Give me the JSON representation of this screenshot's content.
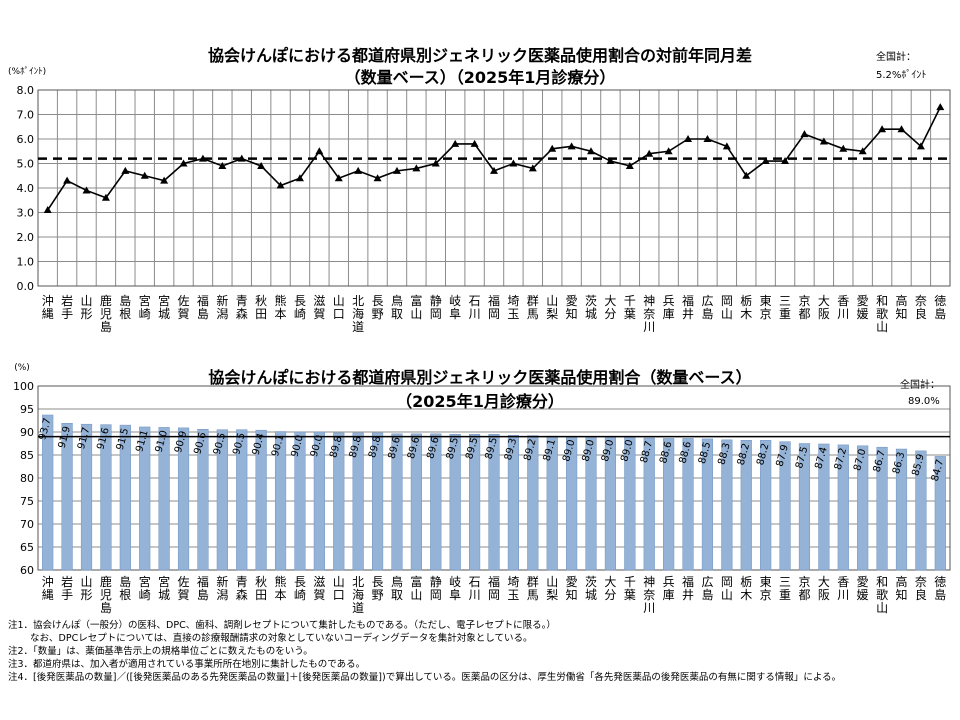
{
  "chart_data": [
    {
      "type": "line",
      "title": "協会けんぽにおける都道府県別ジェネリック医薬品使用割合の対前年同月差",
      "subtitle": "（数量ベース）（2025年1月診療分）",
      "ylabel": "(%ﾎﾟｲﾝﾄ)",
      "ylim": [
        0,
        8
      ],
      "yticks": [
        "0.0",
        "1.0",
        "2.0",
        "3.0",
        "4.0",
        "5.0",
        "6.0",
        "7.0",
        "8.0"
      ],
      "grid": true,
      "reference_line": 5.2,
      "total_label": "全国計：",
      "total_value": "5.2%ﾎﾟｲﾝﾄ",
      "categories": [
        "沖縄",
        "岩手",
        "山形",
        "鹿児島",
        "島根",
        "宮崎",
        "宮城",
        "佐賀",
        "福島",
        "新潟",
        "青森",
        "秋田",
        "熊本",
        "長崎",
        "滋賀",
        "山口",
        "北海道",
        "長野",
        "鳥取",
        "富山",
        "静岡",
        "岐阜",
        "石川",
        "福岡",
        "埼玉",
        "群馬",
        "山梨",
        "愛知",
        "茨城",
        "大分",
        "千葉",
        "神奈川",
        "兵庫",
        "福井",
        "広島",
        "岡山",
        "栃木",
        "東京",
        "三重",
        "京都",
        "大阪",
        "香川",
        "愛媛",
        "和歌山",
        "高知",
        "奈良",
        "徳島"
      ],
      "values": [
        3.1,
        4.3,
        3.9,
        3.6,
        4.7,
        4.5,
        4.3,
        5.0,
        5.2,
        4.9,
        5.2,
        4.9,
        4.1,
        4.4,
        5.5,
        4.4,
        4.7,
        4.4,
        4.7,
        4.8,
        5.0,
        5.8,
        5.8,
        4.7,
        5.0,
        4.8,
        5.6,
        5.7,
        5.5,
        5.1,
        4.9,
        5.4,
        5.5,
        6.0,
        6.0,
        5.7,
        4.5,
        5.1,
        5.1,
        6.2,
        5.9,
        5.6,
        5.5,
        6.4,
        6.4,
        5.7,
        7.3
      ]
    },
    {
      "type": "bar",
      "title": "協会けんぽにおける都道府県別ジェネリック医薬品使用割合（数量ベース）",
      "subtitle": "（2025年1月診療分）",
      "ylabel": "(%)",
      "ylim": [
        60,
        100
      ],
      "yticks": [
        "60",
        "65",
        "70",
        "75",
        "80",
        "85",
        "90",
        "95",
        "100"
      ],
      "grid": true,
      "reference_line": 89.0,
      "total_label": "全国計：",
      "total_value": "89.0%",
      "categories": [
        "沖縄",
        "岩手",
        "山形",
        "鹿児島",
        "島根",
        "宮崎",
        "宮城",
        "佐賀",
        "福島",
        "新潟",
        "青森",
        "秋田",
        "熊本",
        "長崎",
        "滋賀",
        "山口",
        "北海道",
        "長野",
        "鳥取",
        "富山",
        "静岡",
        "岐阜",
        "石川",
        "福岡",
        "埼玉",
        "群馬",
        "山梨",
        "愛知",
        "茨城",
        "大分",
        "千葉",
        "神奈川",
        "兵庫",
        "福井",
        "広島",
        "岡山",
        "栃木",
        "東京",
        "三重",
        "京都",
        "大阪",
        "香川",
        "愛媛",
        "和歌山",
        "高知",
        "奈良",
        "徳島"
      ],
      "values": [
        93.7,
        91.9,
        91.7,
        91.6,
        91.5,
        91.1,
        91.0,
        90.9,
        90.6,
        90.5,
        90.5,
        90.4,
        90.1,
        90.0,
        90.0,
        89.8,
        89.8,
        89.8,
        89.6,
        89.6,
        89.6,
        89.5,
        89.5,
        89.5,
        89.3,
        89.2,
        89.1,
        89.0,
        89.0,
        89.0,
        89.0,
        88.7,
        88.6,
        88.6,
        88.5,
        88.3,
        88.2,
        88.2,
        87.9,
        87.5,
        87.4,
        87.2,
        87.0,
        86.7,
        86.3,
        85.9,
        84.7
      ],
      "value_labels": [
        "93.7",
        "91.9",
        "91.7",
        "91.6",
        "91.5",
        "91.1",
        "91.0",
        "90.9",
        "90.6",
        "90.5",
        "90.5",
        "90.4",
        "90.1",
        "90.0",
        "90.0",
        "89.8",
        "89.8",
        "89.8",
        "89.6",
        "89.6",
        "89.6",
        "89.5",
        "89.5",
        "89.5",
        "89.3",
        "89.2",
        "89.1",
        "89.0",
        "89.0",
        "89.0",
        "89.0",
        "88.7",
        "88.6",
        "88.6",
        "88.5",
        "88.3",
        "88.2",
        "88.2",
        "87.9",
        "87.5",
        "87.4",
        "87.2",
        "87.0",
        "86.7",
        "86.3",
        "85.9",
        "84.7"
      ],
      "colors": {
        "bar": "#95B3D7",
        "bar_stroke": "#6F93C0"
      }
    }
  ],
  "notes": [
    "注1．協会けんぽ（一般分）の医科、DPC、歯科、調剤レセプトについて集計したものである。（ただし、電子レセプトに限る。）",
    "　　 なお、DPCレセプトについては、直接の診療報酬請求の対象としていないコーディングデータを集計対象としている。",
    "注2．「数量」は、薬価基準告示上の規格単位ごとに数えたものをいう。",
    "注3．都道府県は、加入者が適用されている事業所所在地別に集計したものである。",
    "注4．[後発医薬品の数量]／([後発医薬品のある先発医薬品の数量]＋[後発医薬品の数量])で算出している。医薬品の区分は、厚生労働省「各先発医薬品の後発医薬品の有無に関する情報」による。"
  ]
}
